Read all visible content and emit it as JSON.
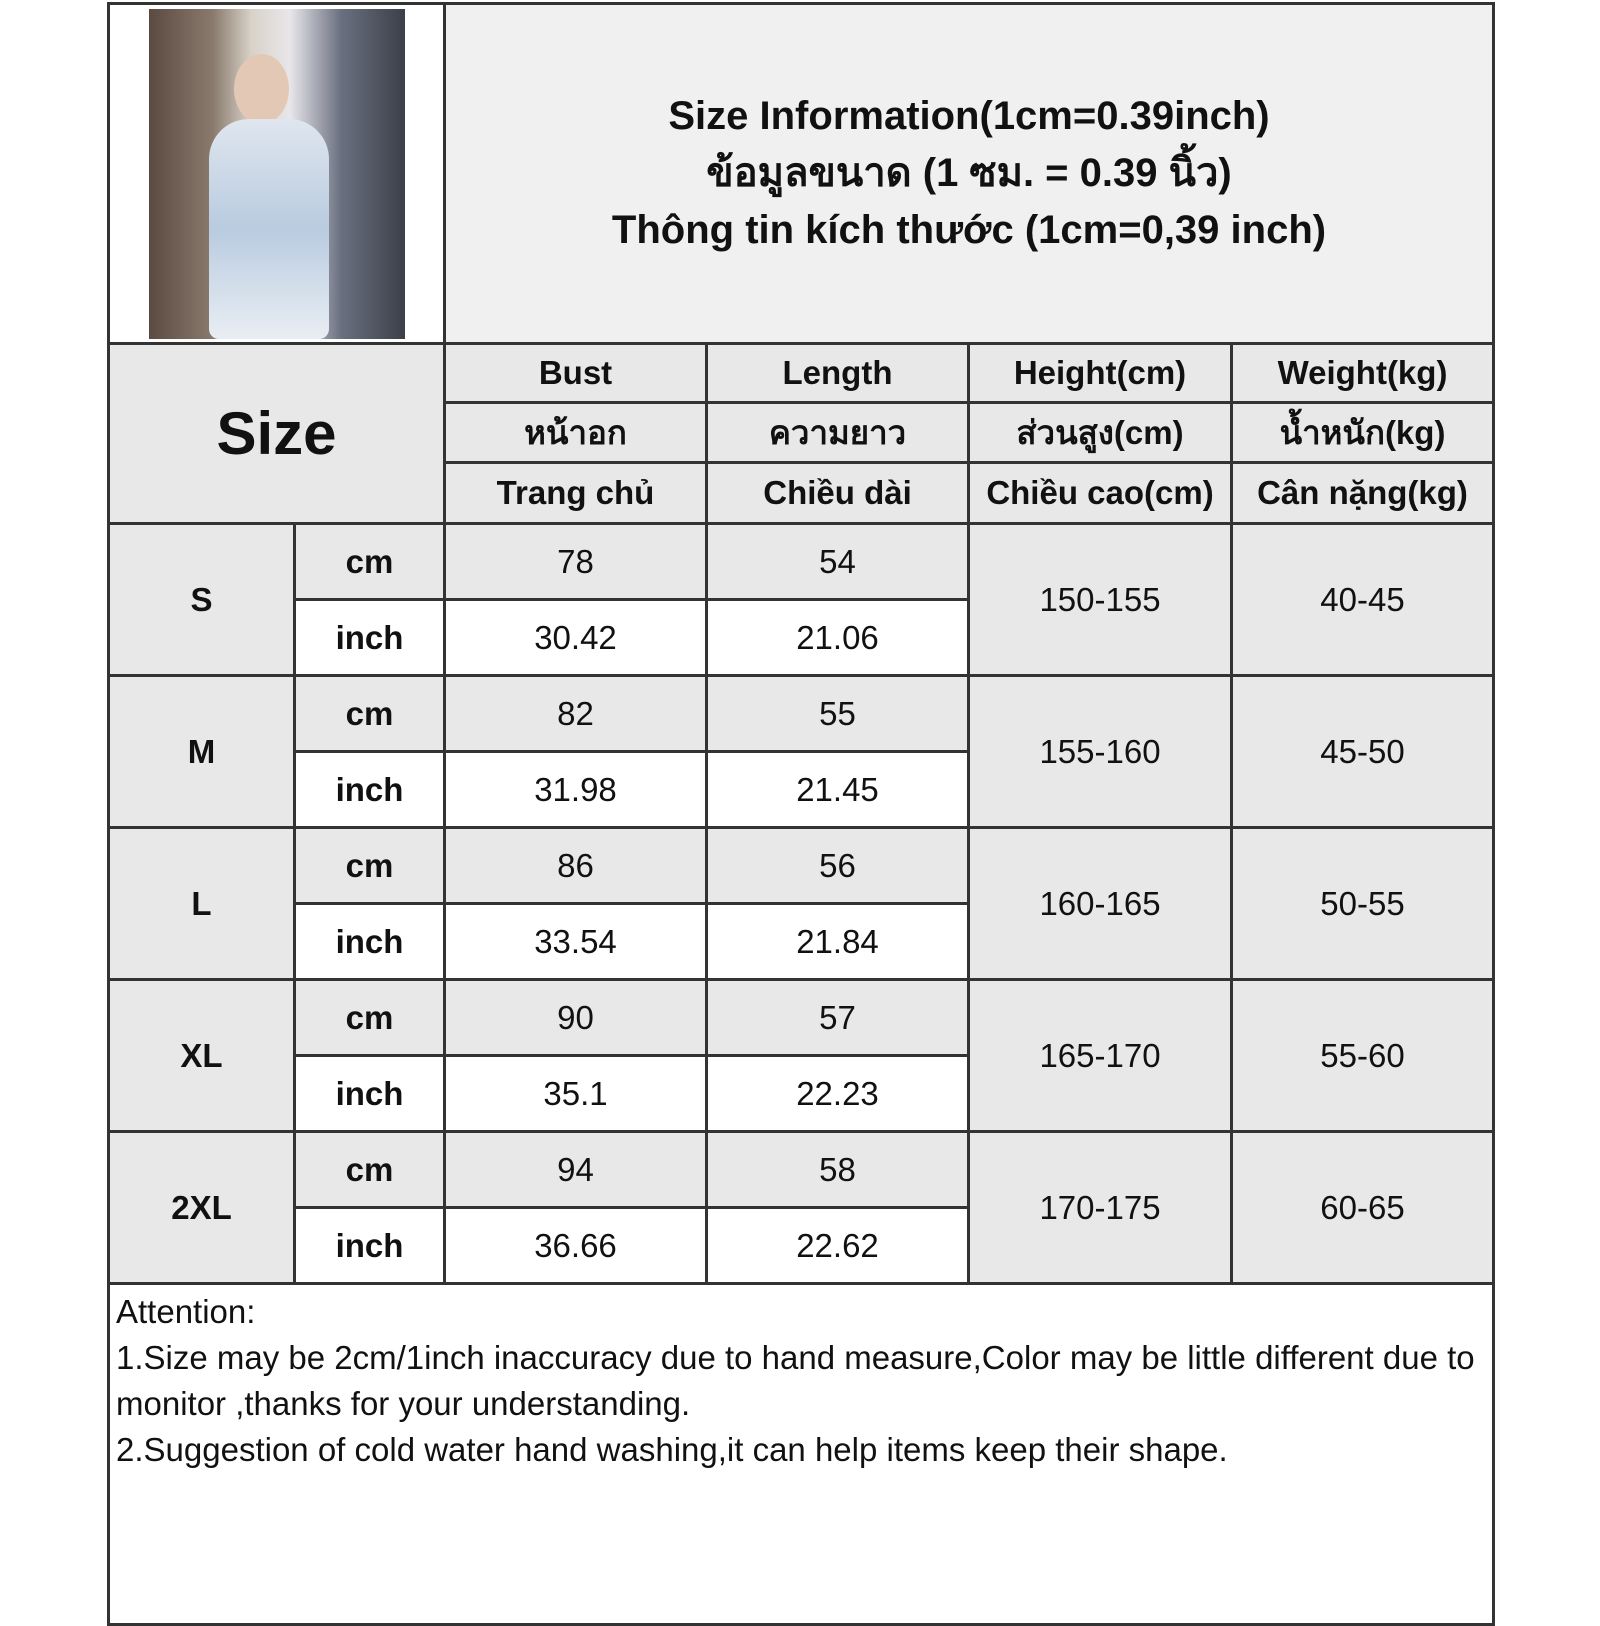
{
  "title_lines": [
    "Size Information(1cm=0.39inch)",
    "ข้อมูลขนาด (1 ซม. = 0.39 นิ้ว)",
    "Thông tin kích thước (1cm=0,39 inch)"
  ],
  "size_label": "Size",
  "headers": [
    [
      "Bust",
      "หน้าอก",
      "Trang chủ"
    ],
    [
      "Length",
      "ความยาว",
      "Chiều dài"
    ],
    [
      "Height(cm)",
      "ส่วนสูง(cm)",
      "Chiều cao(cm)"
    ],
    [
      "Weight(kg)",
      "น้ำหนัก(kg)",
      "Cân nặng(kg)"
    ]
  ],
  "rows": [
    {
      "size": "S",
      "cm_label": "cm",
      "inch_label": "inch",
      "bust_cm": "78",
      "bust_in": "30.42",
      "len_cm": "54",
      "len_in": "21.06",
      "height": "150-155",
      "weight": "40-45"
    },
    {
      "size": "M",
      "cm_label": "cm",
      "inch_label": "inch",
      "bust_cm": "82",
      "bust_in": "31.98",
      "len_cm": "55",
      "len_in": "21.45",
      "height": "155-160",
      "weight": "45-50"
    },
    {
      "size": "L",
      "cm_label": "cm",
      "inch_label": "inch",
      "bust_cm": "86",
      "bust_in": "33.54",
      "len_cm": "56",
      "len_in": "21.84",
      "height": "160-165",
      "weight": "50-55"
    },
    {
      "size": "XL",
      "cm_label": "cm",
      "inch_label": "inch",
      "bust_cm": "90",
      "bust_in": "35.1",
      "len_cm": "57",
      "len_in": "22.23",
      "height": "165-170",
      "weight": "55-60"
    },
    {
      "size": "2XL",
      "cm_label": "cm",
      "inch_label": "inch",
      "bust_cm": "94",
      "bust_in": "36.66",
      "len_cm": "58",
      "len_in": "22.62",
      "height": "170-175",
      "weight": "60-65"
    }
  ],
  "notes": [
    "Attention:",
    "1.Size may be 2cm/1inch inaccuracy due to hand measure,Color may be little different due to monitor ,thanks for your understanding.",
    "2.Suggestion of cold water hand washing,it can help items keep their shape."
  ]
}
